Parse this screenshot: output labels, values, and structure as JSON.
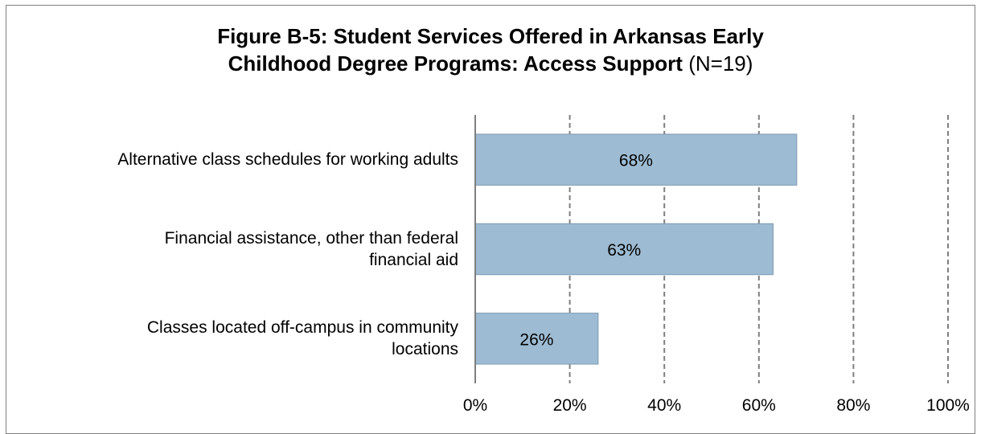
{
  "title": {
    "bold_part": "Figure B-5: Student Services Offered in Arkansas Early Childhood Degree Programs: Access Support",
    "normal_part": "(N=19)"
  },
  "chart_data": {
    "type": "bar",
    "orientation": "horizontal",
    "title": "Figure B-5: Student Services Offered in Arkansas Early Childhood Degree Programs: Access Support (N=19)",
    "categories": [
      "Alternative class schedules for working adults",
      "Financial assistance, other than federal financial aid",
      "Classes located off-campus in community locations"
    ],
    "category_lines": [
      [
        "Alternative class schedules for working adults"
      ],
      [
        "Financial assistance, other than federal",
        "financial aid"
      ],
      [
        "Classes located off-campus in community",
        "locations"
      ]
    ],
    "values": [
      68,
      63,
      26
    ],
    "data_labels": [
      "68%",
      "63%",
      "26%"
    ],
    "xlim": [
      0,
      100
    ],
    "x_ticks": [
      0,
      20,
      40,
      60,
      80,
      100
    ],
    "x_tick_labels": [
      "0%",
      "20%",
      "40%",
      "60%",
      "80%",
      "100%"
    ],
    "grid": "vertical dashed",
    "bar_color": "#9dbbd2",
    "bar_border_color": "#7f9bb3",
    "grid_color": "#7f7f7f",
    "xlabel": "",
    "ylabel": ""
  }
}
